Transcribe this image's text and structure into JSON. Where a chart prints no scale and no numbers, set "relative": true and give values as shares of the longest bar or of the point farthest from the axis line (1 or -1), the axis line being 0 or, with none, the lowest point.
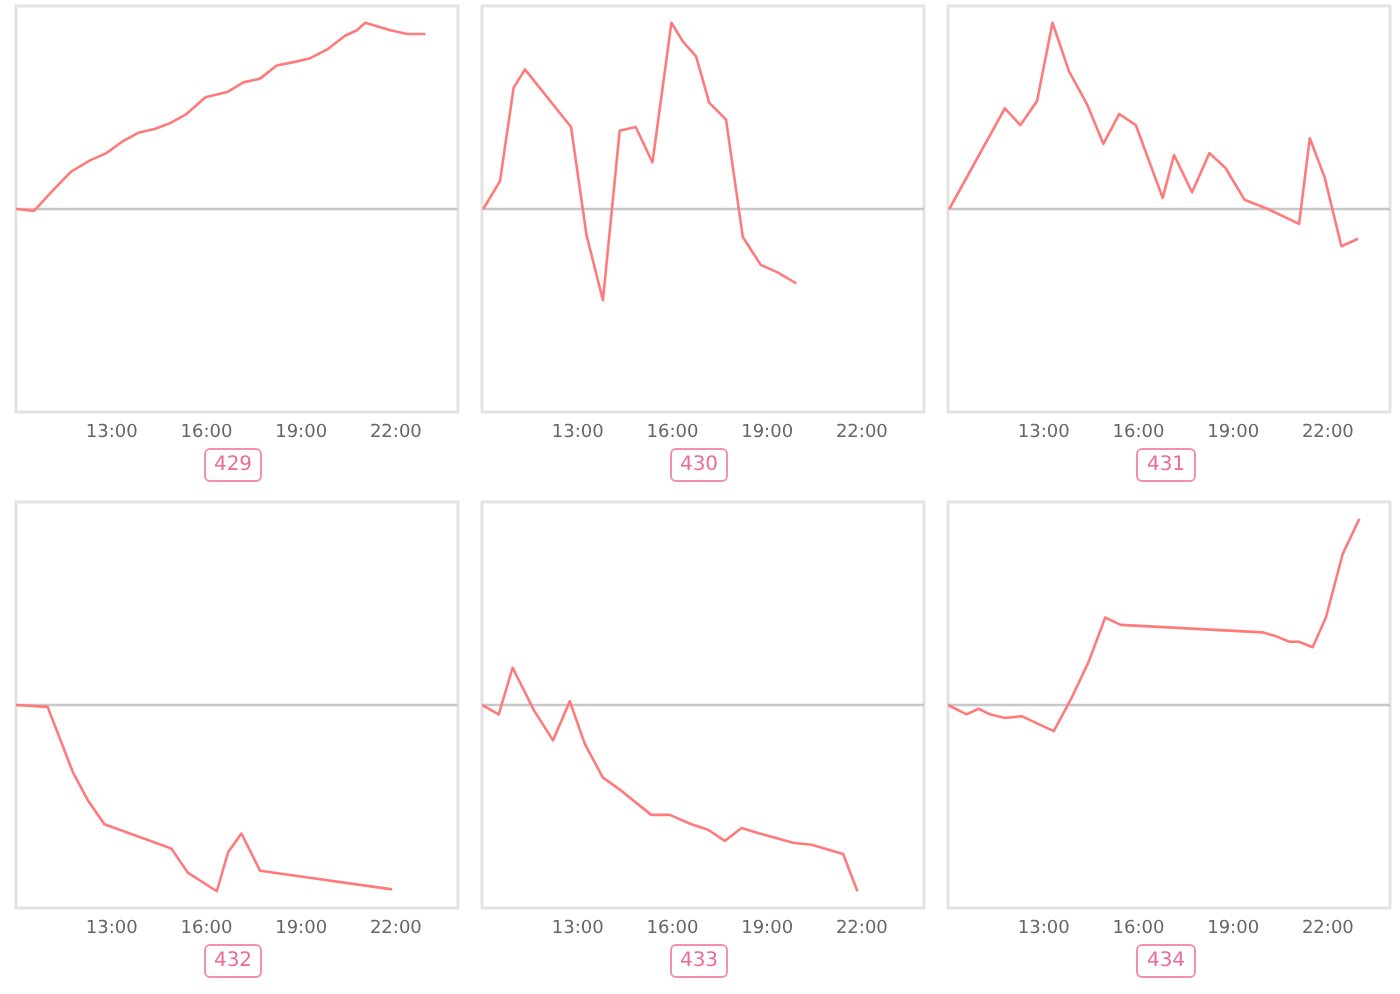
{
  "chart_data": [
    {
      "type": "line",
      "title": "429",
      "relative": true,
      "xlim": [
        10,
        24
      ],
      "xticks": [
        {
          "value": 13,
          "label": "13:00"
        },
        {
          "value": 16,
          "label": "16:00"
        },
        {
          "value": 19,
          "label": "19:00"
        },
        {
          "value": 22,
          "label": "22:00"
        }
      ],
      "x": [
        10.0,
        10.57,
        11.17,
        11.74,
        12.33,
        12.86,
        13.35,
        13.88,
        14.39,
        14.87,
        15.4,
        16.0,
        16.72,
        17.2,
        17.73,
        18.26,
        18.83,
        19.32,
        19.89,
        20.42,
        20.8,
        21.06,
        21.86,
        22.39,
        22.97
      ],
      "series": [
        {
          "color": "#ff7b7b",
          "values": [
            0,
            -0.01,
            0.1,
            0.2,
            0.26,
            0.3,
            0.36,
            0.41,
            0.43,
            0.46,
            0.51,
            0.6,
            0.63,
            0.68,
            0.7,
            0.77,
            0.79,
            0.81,
            0.86,
            0.93,
            0.96,
            1,
            0.96,
            0.94,
            0.94
          ]
        }
      ]
    },
    {
      "type": "line",
      "title": "430",
      "relative": true,
      "xlim": [
        10,
        24
      ],
      "xticks": [
        {
          "value": 13,
          "label": "13:00"
        },
        {
          "value": 16,
          "label": "16:00"
        },
        {
          "value": 19,
          "label": "19:00"
        },
        {
          "value": 22,
          "label": "22:00"
        }
      ],
      "x": [
        10.04,
        10.57,
        11.0,
        11.36,
        12.82,
        13.31,
        13.83,
        14.36,
        14.87,
        15.4,
        16.0,
        16.36,
        16.78,
        17.2,
        17.73,
        18.26,
        18.83,
        19.36,
        19.96
      ],
      "series": [
        {
          "color": "#ff7b7b",
          "values": [
            0,
            0.15,
            0.65,
            0.75,
            0.44,
            -0.14,
            -0.49,
            0.42,
            0.44,
            0.25,
            1,
            0.9,
            0.82,
            0.57,
            0.48,
            -0.15,
            -0.3,
            -0.34,
            -0.4
          ]
        }
      ]
    },
    {
      "type": "line",
      "title": "431",
      "relative": true,
      "xlim": [
        10,
        24
      ],
      "xticks": [
        {
          "value": 13,
          "label": "13:00"
        },
        {
          "value": 16,
          "label": "16:00"
        },
        {
          "value": 19,
          "label": "19:00"
        },
        {
          "value": 22,
          "label": "22:00"
        }
      ],
      "x": [
        10.04,
        11.8,
        12.29,
        12.82,
        13.31,
        13.83,
        14.41,
        14.92,
        15.42,
        15.95,
        16.8,
        17.16,
        17.73,
        18.28,
        18.79,
        19.39,
        20.13,
        21.12,
        21.46,
        21.93,
        22.46,
        22.99
      ],
      "series": [
        {
          "color": "#ff7b7b",
          "values": [
            0,
            0.54,
            0.45,
            0.58,
            1,
            0.74,
            0.56,
            0.35,
            0.51,
            0.45,
            0.06,
            0.29,
            0.09,
            0.3,
            0.22,
            0.05,
            0,
            -0.08,
            0.38,
            0.17,
            -0.2,
            -0.16
          ]
        }
      ]
    },
    {
      "type": "line",
      "title": "432",
      "relative": true,
      "xlim": [
        10,
        24
      ],
      "xticks": [
        {
          "value": 13,
          "label": "13:00"
        },
        {
          "value": 16,
          "label": "16:00"
        },
        {
          "value": 19,
          "label": "19:00"
        },
        {
          "value": 22,
          "label": "22:00"
        }
      ],
      "x": [
        10.0,
        11.0,
        11.8,
        12.27,
        12.8,
        14.92,
        15.44,
        16.36,
        16.72,
        17.14,
        17.73,
        21.91
      ],
      "series": [
        {
          "color": "#ff7b7b",
          "values": [
            0,
            -0.01,
            -0.36,
            -0.51,
            -0.64,
            -0.77,
            -0.9,
            -1,
            -0.79,
            -0.69,
            -0.89,
            -0.99
          ]
        }
      ]
    },
    {
      "type": "line",
      "title": "433",
      "relative": true,
      "xlim": [
        10,
        24
      ],
      "xticks": [
        {
          "value": 13,
          "label": "13:00"
        },
        {
          "value": 16,
          "label": "16:00"
        },
        {
          "value": 19,
          "label": "19:00"
        },
        {
          "value": 22,
          "label": "22:00"
        }
      ],
      "x": [
        10.0,
        10.53,
        10.97,
        11.65,
        12.25,
        12.78,
        13.26,
        13.83,
        14.41,
        15.36,
        15.95,
        16.63,
        17.16,
        17.69,
        18.22,
        18.79,
        19.85,
        20.44,
        21.44,
        21.89
      ],
      "series": [
        {
          "color": "#ff7b7b",
          "values": [
            0,
            -0.05,
            0.2,
            -0.03,
            -0.19,
            0.02,
            -0.21,
            -0.39,
            -0.46,
            -0.59,
            -0.59,
            -0.64,
            -0.67,
            -0.73,
            -0.66,
            -0.69,
            -0.74,
            -0.75,
            -0.8,
            -1
          ]
        }
      ]
    },
    {
      "type": "line",
      "title": "434",
      "relative": true,
      "xlim": [
        10,
        24
      ],
      "xticks": [
        {
          "value": 13,
          "label": "13:00"
        },
        {
          "value": 16,
          "label": "16:00"
        },
        {
          "value": 19,
          "label": "19:00"
        },
        {
          "value": 22,
          "label": "22:00"
        }
      ],
      "x": [
        10.0,
        10.59,
        10.97,
        11.33,
        11.8,
        12.33,
        13.35,
        13.92,
        14.45,
        14.98,
        15.47,
        19.96,
        20.38,
        20.81,
        21.12,
        21.55,
        21.97,
        22.5,
        23.03
      ],
      "series": [
        {
          "color": "#ff7b7b",
          "values": [
            0,
            -0.05,
            -0.02,
            -0.05,
            -0.07,
            -0.06,
            -0.14,
            0.04,
            0.23,
            0.47,
            0.43,
            0.39,
            0.37,
            0.34,
            0.34,
            0.31,
            0.47,
            0.81,
            1
          ]
        }
      ]
    }
  ]
}
